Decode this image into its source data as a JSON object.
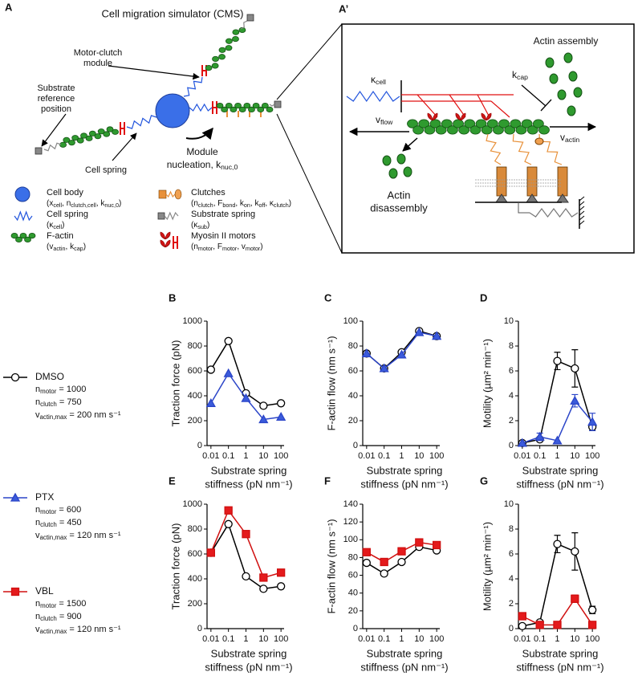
{
  "figure": {
    "panel_a": {
      "letter": "A",
      "title": "Cell migration simulator (CMS)",
      "motor_clutch": [
        "Motor-clutch",
        "module"
      ],
      "substrate_ref": [
        "Substrate",
        "reference",
        "position"
      ],
      "cell_spring": "Cell spring",
      "nucleation": [
        "Module",
        [
          "nucleation, k",
          {
            "sub": "nuc,0"
          }
        ]
      ],
      "legend": [
        {
          "name": "Cell body",
          "params": [
            "(x",
            {
              "sub": "cell"
            },
            ", n",
            {
              "sub": "clutch,cell"
            },
            ", k",
            {
              "sub": "nuc,0"
            },
            ")"
          ]
        },
        {
          "name": "Cell spring",
          "params": [
            "(κ",
            {
              "sub": "cell"
            },
            ")"
          ]
        },
        {
          "name": "F-actin",
          "params": [
            "(v",
            {
              "sub": "actin"
            },
            ", k",
            {
              "sub": "cap"
            },
            ")"
          ]
        },
        {
          "name": "Clutches",
          "params": [
            "(n",
            {
              "sub": "clutch"
            },
            ", F",
            {
              "sub": "bond"
            },
            ", k",
            {
              "sub": "on"
            },
            ", k",
            {
              "sub": "off"
            },
            ", κ",
            {
              "sub": "clutch"
            },
            ")"
          ]
        },
        {
          "name": "Substrate spring",
          "params": [
            "(κ",
            {
              "sub": "sub"
            },
            ")"
          ]
        },
        {
          "name": "Myosin II motors",
          "params": [
            "(n",
            {
              "sub": "motor"
            },
            ", F",
            {
              "sub": "motor"
            },
            ", v",
            {
              "sub": "motor"
            },
            ")"
          ]
        }
      ]
    },
    "panel_a_prime": {
      "letter": "A’",
      "assembly": "Actin assembly",
      "kappa_cell": [
        "κ",
        {
          "sub": "cell"
        }
      ],
      "k_cap": [
        "k",
        {
          "sub": "cap"
        }
      ],
      "v_flow": [
        "v",
        {
          "sub": "flow"
        }
      ],
      "v_actin": [
        "v",
        {
          "sub": "actin"
        }
      ],
      "disassembly": [
        "Actin",
        "disassembly"
      ]
    },
    "conditions": [
      {
        "params": [
          [
            "n",
            {
              "sub": "motor"
            },
            " = 1000"
          ],
          [
            "n",
            {
              "sub": "clutch"
            },
            " = 750"
          ],
          [
            "v",
            {
              "sub": "actin,max"
            },
            " = 200 nm s⁻¹"
          ]
        ]
      },
      {
        "params": [
          [
            "n",
            {
              "sub": "motor"
            },
            " = 600"
          ],
          [
            "n",
            {
              "sub": "clutch"
            },
            " = 450"
          ],
          [
            "v",
            {
              "sub": "actin,max"
            },
            " = 120 nm s⁻¹"
          ]
        ]
      },
      {
        "params": [
          [
            "n",
            {
              "sub": "motor"
            },
            " = 1500"
          ],
          [
            "n",
            {
              "sub": "clutch"
            },
            " = 900"
          ],
          [
            "v",
            {
              "sub": "actin,max"
            },
            " = 120 nm s⁻¹"
          ]
        ]
      }
    ]
  },
  "chart_data": [
    {
      "type": "line",
      "panel": "B",
      "ylabel": "Traction force (pN)",
      "xlabel": [
        "Substrate spring",
        "stiffness (pN nm⁻¹)"
      ],
      "x": [
        0.01,
        0.1,
        1,
        10,
        100
      ],
      "xscale": "log",
      "xlim": [
        0.006,
        150
      ],
      "xticks": [
        0.01,
        0.1,
        1,
        10,
        100
      ],
      "ylim": [
        0,
        1000
      ],
      "yticks": [
        0,
        200,
        400,
        600,
        800,
        1000
      ],
      "series": [
        {
          "name": "DMSO",
          "color": "#000000",
          "fill": "#ffffff",
          "marker": "circle",
          "values": [
            610,
            840,
            420,
            320,
            340
          ]
        },
        {
          "name": "PTX",
          "color": "#2b45c8",
          "fill": "#3b5bdb",
          "marker": "triangle",
          "values": [
            340,
            580,
            380,
            210,
            230
          ]
        }
      ]
    },
    {
      "type": "line",
      "panel": "C",
      "ylabel": "F-actin flow (nm s⁻¹)",
      "xlabel": [
        "Substrate spring",
        "stiffness (pN nm⁻¹)"
      ],
      "x": [
        0.01,
        0.1,
        1,
        10,
        100
      ],
      "xscale": "log",
      "xlim": [
        0.006,
        150
      ],
      "xticks": [
        0.01,
        0.1,
        1,
        10,
        100
      ],
      "ylim": [
        0,
        100
      ],
      "yticks": [
        0,
        20,
        40,
        60,
        80,
        100
      ],
      "series": [
        {
          "color": "#000000",
          "fill": "#ffffff",
          "marker": "circle",
          "values": [
            74,
            62,
            75,
            92,
            88
          ]
        },
        {
          "color": "#2b45c8",
          "fill": "#3b5bdb",
          "marker": "triangle",
          "values": [
            74,
            62,
            73,
            91,
            88
          ]
        }
      ]
    },
    {
      "type": "line",
      "panel": "D",
      "ylabel": "Motility (µm² min⁻¹)",
      "xlabel": [
        "Substrate spring",
        "stiffness (pN nm⁻¹)"
      ],
      "x": [
        0.01,
        0.1,
        1,
        10,
        100
      ],
      "xscale": "log",
      "xlim": [
        0.006,
        150
      ],
      "xticks": [
        0.01,
        0.1,
        1,
        10,
        100
      ],
      "ylim": [
        0,
        10
      ],
      "yticks": [
        0,
        2,
        4,
        6,
        8,
        10
      ],
      "series": [
        {
          "color": "#000000",
          "fill": "#ffffff",
          "marker": "circle",
          "values": [
            0.2,
            0.5,
            6.8,
            6.2,
            1.5
          ],
          "errors": [
            null,
            null,
            0.7,
            1.5,
            0.3
          ]
        },
        {
          "color": "#2b45c8",
          "fill": "#3b5bdb",
          "marker": "triangle",
          "values": [
            0.2,
            0.7,
            0.4,
            3.6,
            1.9
          ],
          "errors": [
            null,
            0.3,
            null,
            0.5,
            0.7
          ]
        }
      ]
    },
    {
      "type": "line",
      "panel": "E",
      "ylabel": "Traction force (pN)",
      "xlabel": [
        "Substrate spring",
        "stiffness (pN nm⁻¹)"
      ],
      "x": [
        0.01,
        0.1,
        1,
        10,
        100
      ],
      "xscale": "log",
      "xlim": [
        0.006,
        150
      ],
      "xticks": [
        0.01,
        0.1,
        1,
        10,
        100
      ],
      "ylim": [
        0,
        1000
      ],
      "yticks": [
        0,
        200,
        400,
        600,
        800,
        1000
      ],
      "series": [
        {
          "color": "#000000",
          "fill": "#ffffff",
          "marker": "circle",
          "values": [
            610,
            840,
            420,
            320,
            340
          ]
        },
        {
          "name": "VBL",
          "color": "#d01010",
          "fill": "#e41a1c",
          "marker": "square",
          "values": [
            610,
            950,
            760,
            410,
            450
          ]
        }
      ]
    },
    {
      "type": "line",
      "panel": "F",
      "ylabel": "F-actin flow (nm s⁻¹)",
      "xlabel": [
        "Substrate spring",
        "stiffness (pN nm⁻¹)"
      ],
      "x": [
        0.01,
        0.1,
        1,
        10,
        100
      ],
      "xscale": "log",
      "xlim": [
        0.006,
        150
      ],
      "xticks": [
        0.01,
        0.1,
        1,
        10,
        100
      ],
      "ylim": [
        0,
        140
      ],
      "yticks": [
        0,
        20,
        40,
        60,
        80,
        100,
        120,
        140
      ],
      "series": [
        {
          "color": "#000000",
          "fill": "#ffffff",
          "marker": "circle",
          "values": [
            74,
            62,
            75,
            92,
            88
          ]
        },
        {
          "color": "#d01010",
          "fill": "#e41a1c",
          "marker": "square",
          "values": [
            86,
            75,
            87,
            97,
            94
          ]
        }
      ]
    },
    {
      "type": "line",
      "panel": "G",
      "ylabel": "Motility (µm² min⁻¹)",
      "xlabel": [
        "Substrate spring",
        "stiffness (pN nm⁻¹)"
      ],
      "x": [
        0.01,
        0.1,
        1,
        10,
        100
      ],
      "xscale": "log",
      "xlim": [
        0.006,
        150
      ],
      "xticks": [
        0.01,
        0.1,
        1,
        10,
        100
      ],
      "ylim": [
        0,
        10
      ],
      "yticks": [
        0,
        2,
        4,
        6,
        8,
        10
      ],
      "series": [
        {
          "color": "#000000",
          "fill": "#ffffff",
          "marker": "circle",
          "values": [
            0.2,
            0.5,
            6.8,
            6.2,
            1.5
          ],
          "errors": [
            null,
            null,
            0.7,
            1.5,
            0.3
          ]
        },
        {
          "color": "#d01010",
          "fill": "#e41a1c",
          "marker": "square",
          "values": [
            1.0,
            0.3,
            0.3,
            2.4,
            0.3
          ],
          "errors": [
            null,
            null,
            null,
            0.3,
            null
          ]
        }
      ]
    }
  ]
}
